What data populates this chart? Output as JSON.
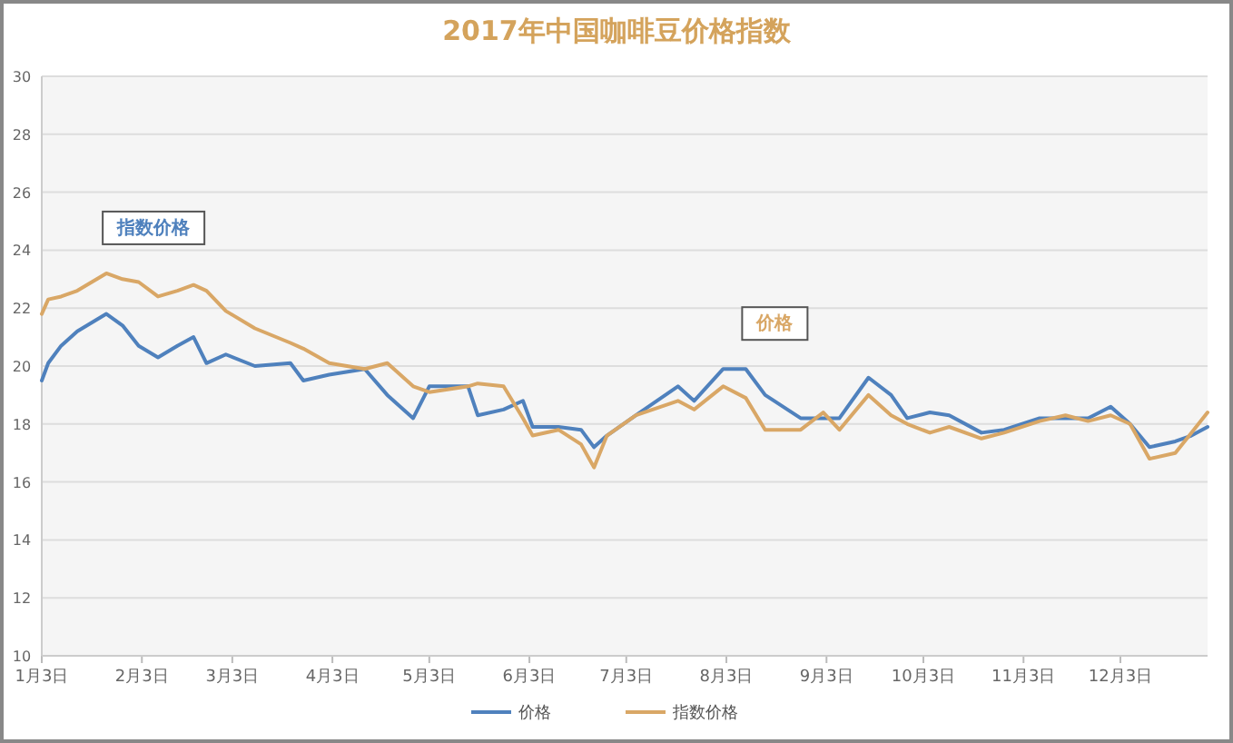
{
  "chart_data": {
    "type": "line",
    "title": "2017年中国咖啡豆价格指数",
    "x": [
      "2017-01-03",
      "2017-01-05",
      "2017-01-09",
      "2017-01-14",
      "2017-01-23",
      "2017-01-28",
      "2017-02-02",
      "2017-02-08",
      "2017-02-14",
      "2017-02-19",
      "2017-02-23",
      "2017-03-01",
      "2017-03-10",
      "2017-03-21",
      "2017-03-25",
      "2017-04-02",
      "2017-04-13",
      "2017-04-20",
      "2017-04-28",
      "2017-05-03",
      "2017-05-15",
      "2017-05-18",
      "2017-05-26",
      "2017-06-01",
      "2017-06-04",
      "2017-06-12",
      "2017-06-19",
      "2017-06-23",
      "2017-06-27",
      "2017-07-06",
      "2017-07-19",
      "2017-07-24",
      "2017-08-02",
      "2017-08-09",
      "2017-08-15",
      "2017-08-26",
      "2017-09-02",
      "2017-09-07",
      "2017-09-16",
      "2017-09-23",
      "2017-09-28",
      "2017-10-05",
      "2017-10-11",
      "2017-10-21",
      "2017-10-28",
      "2017-11-08",
      "2017-11-16",
      "2017-11-23",
      "2017-11-30",
      "2017-12-06",
      "2017-12-12",
      "2017-12-20",
      "2017-12-25",
      "2017-12-30"
    ],
    "series": [
      {
        "name": "价格",
        "color": "#4f81bd",
        "values": [
          19.5,
          20.1,
          20.7,
          21.2,
          21.8,
          21.4,
          20.7,
          20.3,
          20.7,
          21.0,
          20.1,
          20.4,
          20.0,
          20.1,
          19.5,
          19.7,
          19.9,
          19.0,
          18.2,
          19.3,
          19.3,
          18.3,
          18.5,
          18.8,
          17.9,
          17.9,
          17.8,
          17.2,
          17.6,
          18.3,
          19.3,
          18.8,
          19.9,
          19.9,
          19.0,
          18.2,
          18.2,
          18.2,
          19.6,
          19.0,
          18.2,
          18.4,
          18.3,
          17.7,
          17.8,
          18.2,
          18.2,
          18.2,
          18.6,
          18.0,
          17.2,
          17.4,
          17.6,
          17.9
        ]
      },
      {
        "name": "指数价格",
        "color": "#d9a766",
        "values": [
          21.8,
          22.3,
          22.4,
          22.6,
          23.2,
          23.0,
          22.9,
          22.4,
          22.6,
          22.8,
          22.6,
          21.9,
          21.3,
          20.8,
          20.6,
          20.1,
          19.9,
          20.1,
          19.3,
          19.1,
          19.3,
          19.4,
          19.3,
          18.2,
          17.6,
          17.8,
          17.3,
          16.5,
          17.6,
          18.3,
          18.8,
          18.5,
          19.3,
          18.9,
          17.8,
          17.8,
          18.4,
          17.8,
          19.0,
          18.3,
          18.0,
          17.7,
          17.9,
          17.5,
          17.7,
          18.1,
          18.3,
          18.1,
          18.3,
          18.0,
          16.8,
          17.0,
          17.7,
          18.4
        ]
      }
    ],
    "annotations": [
      {
        "text": "指数价格",
        "x": "2017-01-23",
        "y": 23.2
      },
      {
        "text": "价格",
        "x": "2017-08-09",
        "y": 19.9
      }
    ],
    "xlim": [
      "2017-01-03",
      "2017-12-30"
    ],
    "xticks": [
      {
        "value": "2017-01-03",
        "label": "1月3日"
      },
      {
        "value": "2017-02-03",
        "label": "2月3日"
      },
      {
        "value": "2017-03-03",
        "label": "3月3日"
      },
      {
        "value": "2017-04-03",
        "label": "4月3日"
      },
      {
        "value": "2017-05-03",
        "label": "5月3日"
      },
      {
        "value": "2017-06-03",
        "label": "6月3日"
      },
      {
        "value": "2017-07-03",
        "label": "7月3日"
      },
      {
        "value": "2017-08-03",
        "label": "8月3日"
      },
      {
        "value": "2017-09-03",
        "label": "9月3日"
      },
      {
        "value": "2017-10-03",
        "label": "10月3日"
      },
      {
        "value": "2017-11-03",
        "label": "11月3日"
      },
      {
        "value": "2017-12-03",
        "label": "12月3日"
      }
    ],
    "ylim": [
      10,
      30
    ],
    "yticks": [
      10,
      12,
      14,
      16,
      18,
      20,
      22,
      24,
      26,
      28,
      30
    ],
    "grid": "y",
    "legend": "bottom",
    "marker": "none",
    "line_style": "solid"
  }
}
